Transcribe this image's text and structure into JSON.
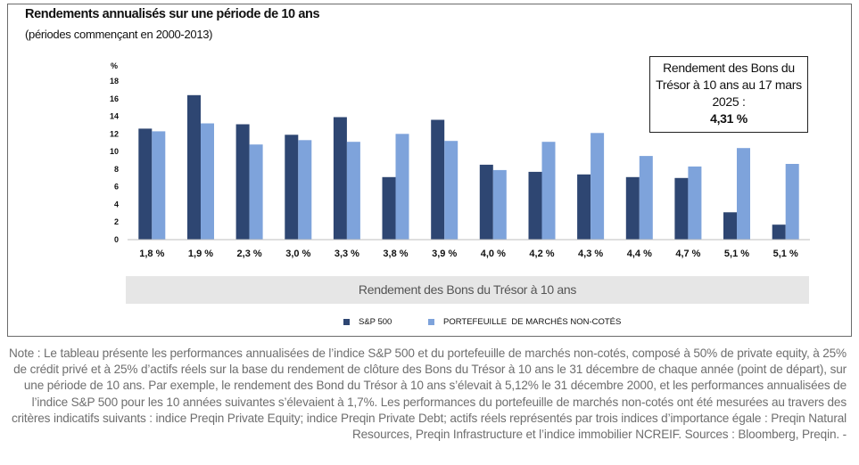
{
  "title": "Rendements annualisés sur une période de 10 ans",
  "subtitle": "(périodes commençant en 2000-2013)",
  "callout": {
    "text": "Rendement des Bons du Trésor à 10 ans au 17 mars 2025 :",
    "value": "4,31 %"
  },
  "x_band_label": "Rendement des Bons du Trésor à 10 ans",
  "note": "Note : Le tableau présente les performances annualisées de l’indice S&P 500 et du portefeuille de marchés non-cotés, composé à 50% de private equity, à 25% de crédit privé et à 25% d’actifs réels sur la base du rendement de clôture des Bons du Trésor à 10 ans le 31 décembre de chaque année (point de départ), sur une période de 10 ans. Par exemple, le rendement des Bond du Trésor à 10 ans s’élevait à 5,12% le 31 décembre 2000, et les performances annualisées de l’indice S&P 500 pour les 10 années suivantes s’élevaient à 1,7%. Les performances du portefeuille de marchés non-cotés ont été mesurées au travers des critères indicatifs suivants : indice Preqin Private Equity; indice Preqin Private Debt; actifs réels représentés par trois indices d’importance égale : Preqin Natural Resources, Preqin Infrastructure et l’indice immobilier NCREIF. Sources : Bloomberg, Preqin. -",
  "chart_data": {
    "type": "bar",
    "ylabel": "%",
    "ylim": [
      0,
      18
    ],
    "yticks": [
      0,
      2,
      4,
      6,
      8,
      10,
      12,
      14,
      16,
      18
    ],
    "categories": [
      "1,8 %",
      "1,9 %",
      "2,3 %",
      "3,0 %",
      "3,3 %",
      "3,8 %",
      "3,9 %",
      "4,0 %",
      "4,2 %",
      "4,3 %",
      "4,4 %",
      "4,7 %",
      "5,1 %",
      "5,1 %"
    ],
    "xlabel": "Rendement des Bons du Trésor à 10 ans",
    "grid": false,
    "legend": "bottom",
    "series": [
      {
        "name": "S&P 500",
        "color": "#2e4672",
        "values": [
          12.6,
          16.4,
          13.1,
          11.9,
          13.9,
          7.1,
          13.6,
          8.5,
          7.7,
          7.4,
          7.1,
          7.0,
          3.1,
          1.7
        ]
      },
      {
        "name": "PORTEFEUILLE  DE MARCHÉS NON-COTÉS",
        "color": "#7ea3db",
        "values": [
          12.3,
          13.2,
          10.8,
          11.3,
          11.1,
          12.0,
          11.2,
          7.9,
          11.1,
          12.1,
          9.5,
          8.3,
          10.4,
          8.6
        ]
      }
    ]
  }
}
